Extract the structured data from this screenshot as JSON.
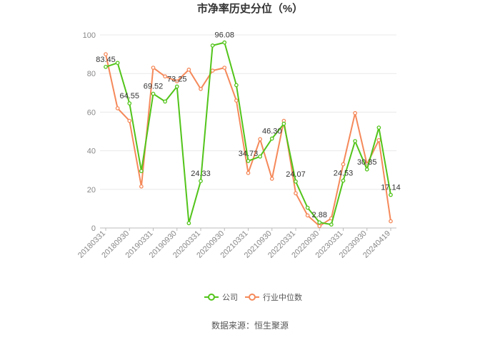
{
  "chart_data": {
    "type": "line",
    "title": "市净率历史分位（%）",
    "source": "数据来源：恒生聚源",
    "ylim": [
      0,
      100
    ],
    "yticks": [
      0,
      20,
      40,
      60,
      80,
      100
    ],
    "grid": true,
    "legend_position": "bottom",
    "x": [
      "20180331",
      "20180630",
      "20180930",
      "20181231",
      "20190331",
      "20190630",
      "20190930",
      "20191231",
      "20200331",
      "20200630",
      "20200930",
      "20201231",
      "20210331",
      "20210630",
      "20210930",
      "20211231",
      "20220331",
      "20220630",
      "20220930",
      "20221231",
      "20230331",
      "20230630",
      "20230930",
      "20231231",
      "20240419"
    ],
    "xtick_labels": [
      "20180331",
      "20180930",
      "20190331",
      "20190930",
      "20200331",
      "20200930",
      "20210331",
      "20210930",
      "20220331",
      "20220930",
      "20230331",
      "20230930",
      "20240419"
    ],
    "series": [
      {
        "name": "公司",
        "color": "#52c41a",
        "values": [
          83.45,
          85.5,
          64.55,
          29.5,
          69.52,
          65.5,
          73.25,
          2.5,
          24.33,
          94.5,
          96.08,
          74.0,
          34.73,
          37.0,
          46.3,
          54.0,
          24.07,
          10.5,
          2.88,
          1.8,
          24.53,
          45.0,
          30.35,
          52.0,
          17.14
        ],
        "labels": [
          "83.45",
          null,
          "64.55",
          null,
          "69.52",
          null,
          "73.25",
          null,
          "24.33",
          null,
          "96.08",
          null,
          "34.73",
          null,
          "46.30",
          null,
          "24.07",
          null,
          "2.88",
          null,
          "24.53",
          null,
          "30.35",
          null,
          "17.14"
        ]
      },
      {
        "name": "行业中位数",
        "color": "#f5895a",
        "values": [
          90.0,
          62.0,
          55.5,
          21.5,
          83.0,
          78.5,
          76.0,
          82.0,
          72.0,
          81.5,
          83.0,
          66.0,
          28.5,
          46.0,
          25.5,
          55.5,
          18.0,
          6.5,
          1.0,
          5.0,
          33.0,
          59.5,
          33.0,
          45.5,
          3.5
        ]
      }
    ]
  }
}
